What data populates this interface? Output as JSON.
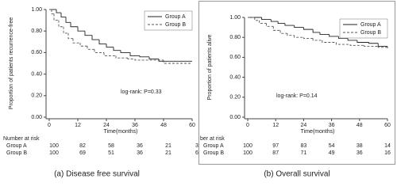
{
  "chart_data": [
    {
      "type": "line",
      "ylabel": "Proportion of patients recurrence-free",
      "xlabel": "Time(months)",
      "annotation": "log-rank: P=0.33",
      "caption": "(a) Disease free survival",
      "xlim": [
        0,
        60
      ],
      "xticks": [
        0,
        12,
        24,
        36,
        48,
        60
      ],
      "ylim": [
        0,
        1
      ],
      "yticks": [
        {
          "value": 0,
          "label": "0.00"
        },
        {
          "value": 0.2,
          "label": "0.20"
        },
        {
          "value": 0.4,
          "label": "0.40"
        },
        {
          "value": 0.6,
          "label": "0.60"
        },
        {
          "value": 0.8,
          "label": "0.80"
        },
        {
          "value": 1,
          "label": "1.00"
        }
      ],
      "legend": "top-right",
      "series": [
        {
          "name": "Group A",
          "color": "#222222",
          "line_style": "solid",
          "x": [
            0,
            3,
            5,
            7,
            9,
            12,
            15,
            18,
            21,
            24,
            27,
            30,
            34,
            38,
            42,
            46,
            60
          ],
          "values": [
            1,
            0.97,
            0.93,
            0.88,
            0.84,
            0.8,
            0.76,
            0.72,
            0.68,
            0.65,
            0.62,
            0.6,
            0.57,
            0.56,
            0.54,
            0.52,
            0.52
          ]
        },
        {
          "name": "Group B",
          "color": "#555555",
          "line_style": "dashed",
          "x": [
            0,
            1,
            2,
            4,
            6,
            8,
            10,
            13,
            16,
            19,
            23,
            28,
            33,
            36,
            48,
            60
          ],
          "values": [
            1,
            0.96,
            0.9,
            0.84,
            0.78,
            0.73,
            0.69,
            0.66,
            0.63,
            0.6,
            0.57,
            0.55,
            0.54,
            0.53,
            0.5,
            0.5
          ]
        }
      ],
      "risk_table": {
        "title": "Number at risk",
        "rows": [
          {
            "name": "Group A",
            "values": [
              100,
              82,
              58,
              36,
              21,
              3
            ]
          },
          {
            "name": "Group B",
            "values": [
              100,
              69,
              51,
              36,
              21,
              6
            ]
          }
        ]
      }
    },
    {
      "type": "line",
      "ylabel": "Proportion of patients alive",
      "xlabel": "Time(months)",
      "annotation": "log-rank: P=0.14",
      "caption": "(b) Overall survival",
      "xlim": [
        0,
        60
      ],
      "xticks": [
        0,
        12,
        24,
        36,
        48,
        60
      ],
      "ylim": [
        0,
        1
      ],
      "yticks": [
        {
          "value": 0,
          "label": "0.00"
        },
        {
          "value": 0.2,
          "label": "0.20"
        },
        {
          "value": 0.4,
          "label": "0.40"
        },
        {
          "value": 0.6,
          "label": "0.60"
        },
        {
          "value": 0.8,
          "label": "0.80"
        },
        {
          "value": 1,
          "label": "1.00"
        }
      ],
      "legend": "top-right",
      "series": [
        {
          "name": "Group A",
          "color": "#222222",
          "line_style": "solid",
          "x": [
            0,
            6,
            10,
            13,
            16,
            20,
            24,
            28,
            31,
            35,
            39,
            43,
            47,
            52,
            56,
            60
          ],
          "values": [
            1,
            0.98,
            0.96,
            0.94,
            0.92,
            0.9,
            0.88,
            0.85,
            0.83,
            0.81,
            0.79,
            0.77,
            0.75,
            0.74,
            0.71,
            0.7
          ]
        },
        {
          "name": "Group B",
          "color": "#555555",
          "line_style": "dashed",
          "x": [
            0,
            3,
            5,
            8,
            11,
            14,
            17,
            20,
            24,
            28,
            32,
            38,
            44,
            50,
            56,
            60
          ],
          "values": [
            1,
            0.97,
            0.94,
            0.91,
            0.87,
            0.84,
            0.82,
            0.8,
            0.79,
            0.77,
            0.75,
            0.73,
            0.72,
            0.71,
            0.7,
            0.69
          ]
        }
      ],
      "risk_table": {
        "title": "ber at risk",
        "rows": [
          {
            "name": "Group A",
            "values": [
              100,
              97,
              83,
              54,
              38,
              14
            ]
          },
          {
            "name": "Group B",
            "values": [
              100,
              87,
              71,
              49,
              36,
              16
            ]
          }
        ]
      }
    }
  ]
}
